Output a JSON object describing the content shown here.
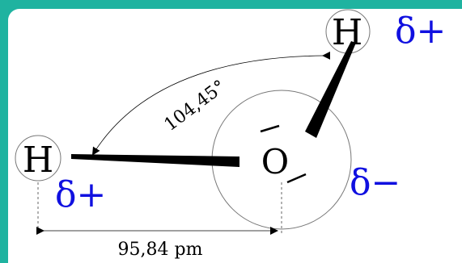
{
  "atoms": {
    "hydrogen_top": {
      "symbol": "H",
      "charge": "δ+"
    },
    "hydrogen_left": {
      "symbol": "H",
      "charge": "δ+"
    },
    "oxygen": {
      "symbol": "O",
      "charge": "δ−"
    }
  },
  "angle": {
    "value": "104,45°"
  },
  "bond_length": {
    "value": "95,84 pm"
  },
  "colors": {
    "background": "#1fb3a0",
    "charge": "#1010e0"
  }
}
